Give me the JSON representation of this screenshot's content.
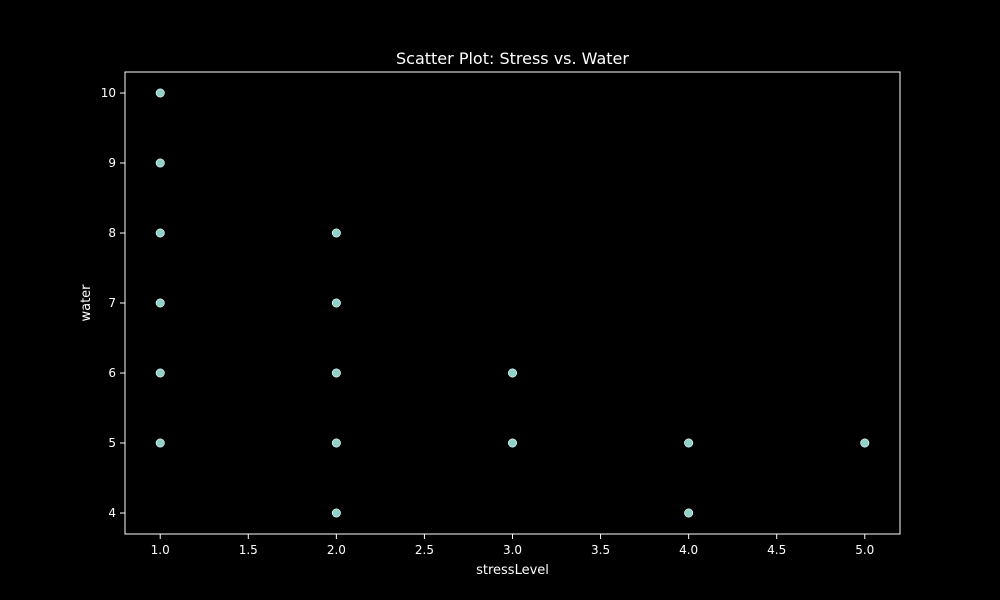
{
  "chart_data": {
    "type": "scatter",
    "title": "Scatter Plot: Stress vs. Water",
    "xlabel": "stressLevel",
    "ylabel": "water",
    "xlim": [
      0.8,
      5.2
    ],
    "ylim": [
      3.7,
      10.3
    ],
    "x_ticks": [
      1.0,
      1.5,
      2.0,
      2.5,
      3.0,
      3.5,
      4.0,
      4.5,
      5.0
    ],
    "x_tick_labels": [
      "1.0",
      "1.5",
      "2.0",
      "2.5",
      "3.0",
      "3.5",
      "4.0",
      "4.5",
      "5.0"
    ],
    "y_ticks": [
      4,
      5,
      6,
      7,
      8,
      9,
      10
    ],
    "y_tick_labels": [
      "4",
      "5",
      "6",
      "7",
      "8",
      "9",
      "10"
    ],
    "grid": false,
    "legend": "none",
    "background_color": "#000000",
    "axis_color": "#ffffff",
    "marker_color": "#8dd3c7",
    "points": [
      {
        "x": 1,
        "y": 10
      },
      {
        "x": 1,
        "y": 9
      },
      {
        "x": 1,
        "y": 8
      },
      {
        "x": 1,
        "y": 7
      },
      {
        "x": 1,
        "y": 6
      },
      {
        "x": 1,
        "y": 5
      },
      {
        "x": 2,
        "y": 8
      },
      {
        "x": 2,
        "y": 7
      },
      {
        "x": 2,
        "y": 6
      },
      {
        "x": 2,
        "y": 5
      },
      {
        "x": 2,
        "y": 4
      },
      {
        "x": 3,
        "y": 6
      },
      {
        "x": 3,
        "y": 5
      },
      {
        "x": 4,
        "y": 5
      },
      {
        "x": 4,
        "y": 4
      },
      {
        "x": 5,
        "y": 5
      }
    ]
  }
}
